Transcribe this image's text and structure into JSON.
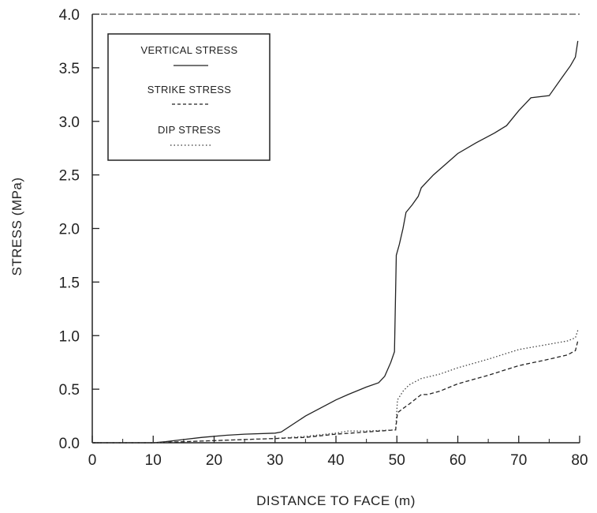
{
  "chart_data": {
    "type": "line",
    "xlabel": "DISTANCE TO FACE (m)",
    "ylabel": "STRESS (MPa)",
    "xlim": [
      0,
      80
    ],
    "ylim": [
      0,
      4.0
    ],
    "x_ticks": [
      "0",
      "10",
      "20",
      "30",
      "40",
      "50",
      "60",
      "70",
      "80"
    ],
    "y_ticks": [
      "0.0",
      "0.5",
      "1.0",
      "1.5",
      "2.0",
      "2.5",
      "3.0",
      "3.5",
      "4.0"
    ],
    "grid": false,
    "legend_position": "top-left",
    "series": [
      {
        "name": "VERTICAL STRESS",
        "style": "solid",
        "x": [
          0,
          10,
          12,
          15,
          18,
          22,
          25,
          30,
          31,
          35,
          40,
          42,
          45,
          47,
          48,
          49,
          49.6,
          49.9,
          50.4,
          51,
          51.5,
          52.5,
          53.5,
          54,
          56,
          58,
          60,
          63,
          66,
          68,
          70,
          72,
          75,
          77,
          78.5,
          79.3,
          79.7
        ],
        "y": [
          0,
          0,
          0.01,
          0.03,
          0.05,
          0.07,
          0.08,
          0.09,
          0.1,
          0.25,
          0.4,
          0.45,
          0.52,
          0.56,
          0.62,
          0.75,
          0.85,
          1.75,
          1.85,
          2.0,
          2.15,
          2.22,
          2.3,
          2.38,
          2.5,
          2.6,
          2.7,
          2.8,
          2.89,
          2.96,
          3.1,
          3.22,
          3.24,
          3.4,
          3.52,
          3.6,
          3.75
        ]
      },
      {
        "name": "STRIKE STRESS",
        "style": "dashed",
        "x": [
          0,
          10,
          15,
          20,
          25,
          30,
          35,
          40,
          45,
          49.8,
          50.1,
          51,
          52,
          54,
          55,
          57,
          60,
          65,
          70,
          75,
          78,
          79.3,
          79.7
        ],
        "y": [
          0,
          0,
          0.01,
          0.02,
          0.03,
          0.04,
          0.05,
          0.08,
          0.1,
          0.12,
          0.28,
          0.32,
          0.36,
          0.45,
          0.45,
          0.48,
          0.55,
          0.63,
          0.72,
          0.78,
          0.82,
          0.86,
          0.95
        ]
      },
      {
        "name": "DIP STRESS",
        "style": "dotted",
        "x": [
          0,
          10,
          15,
          20,
          25,
          30,
          35,
          40,
          42,
          45,
          49.8,
          50.1,
          51,
          52,
          54,
          57,
          60,
          65,
          70,
          75,
          78,
          79.3,
          79.7
        ],
        "y": [
          0,
          0,
          0.01,
          0.02,
          0.03,
          0.04,
          0.06,
          0.09,
          0.11,
          0.11,
          0.12,
          0.4,
          0.48,
          0.54,
          0.6,
          0.64,
          0.7,
          0.78,
          0.87,
          0.92,
          0.95,
          0.98,
          1.05
        ]
      }
    ]
  }
}
